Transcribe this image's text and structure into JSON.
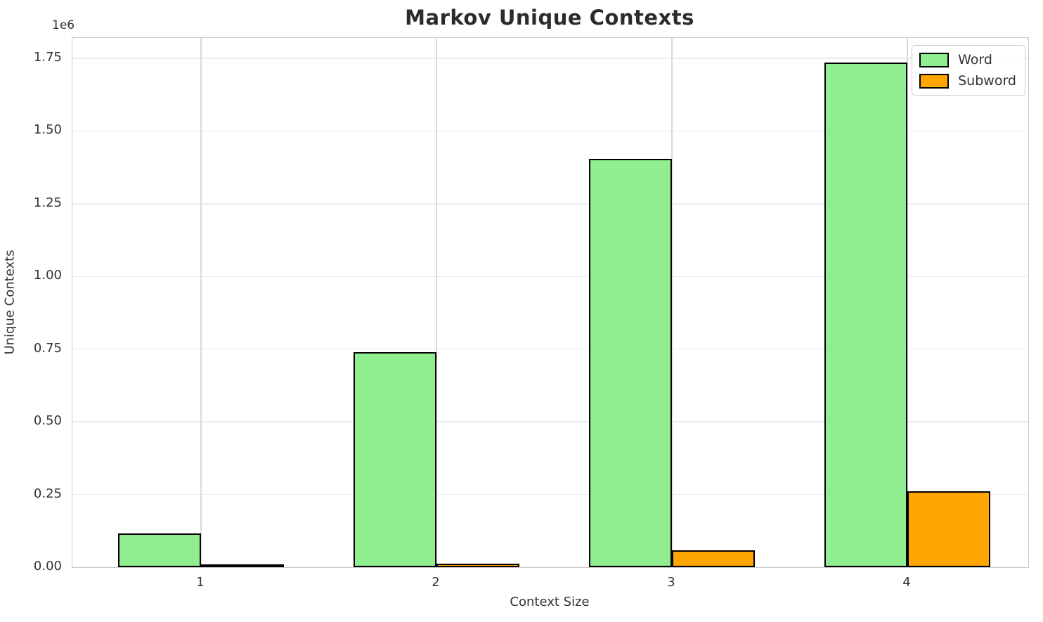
{
  "chart_data": {
    "type": "bar",
    "title": "Markov Unique Contexts",
    "xlabel": "Context Size",
    "ylabel": "Unique Contexts",
    "y_offset_label": "1e6",
    "categories": [
      "1",
      "2",
      "3",
      "4"
    ],
    "series": [
      {
        "name": "Word",
        "color": "#90EE90",
        "values": [
          116000,
          740000,
          1405000,
          1735000
        ]
      },
      {
        "name": "Subword",
        "color": "#FFA500",
        "values": [
          3000,
          12000,
          58000,
          260000
        ]
      }
    ],
    "bar_edge_color": "#000000",
    "ylim": [
      0,
      1820000
    ],
    "ytick_step": 250000,
    "ytick_labels": [
      "0.00",
      "0.25",
      "0.50",
      "0.75",
      "1.00",
      "1.25",
      "1.50",
      "1.75"
    ],
    "grid": true,
    "legend_position": "upper right"
  }
}
